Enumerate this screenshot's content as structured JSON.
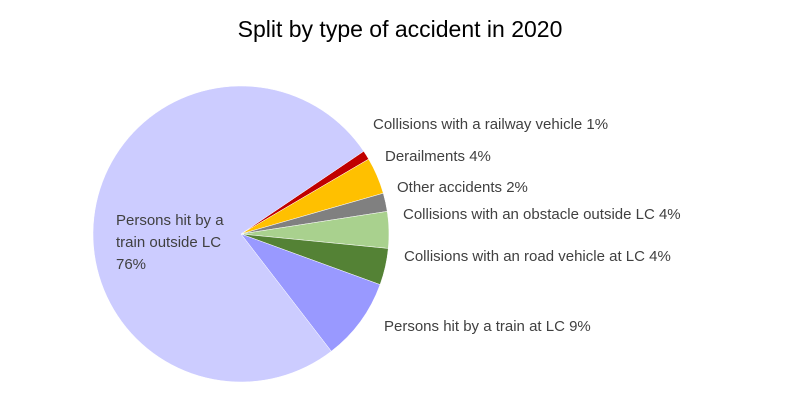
{
  "chart_data": {
    "type": "pie",
    "title": "Split by type of accident in 2020",
    "slices": [
      {
        "label": "Collisions with a railway vehicle",
        "value": 1,
        "pct_label": "1%",
        "color": "#C00000"
      },
      {
        "label": "Derailments",
        "value": 4,
        "pct_label": "4%",
        "color": "#FFC000"
      },
      {
        "label": "Other accidents",
        "value": 2,
        "pct_label": "2%",
        "color": "#808080"
      },
      {
        "label": "Collisions with an obstacle outside LC",
        "value": 4,
        "pct_label": "4%",
        "color": "#A9D18E"
      },
      {
        "label": "Collisions with an road vehicle at LC",
        "value": 4,
        "pct_label": "4%",
        "color": "#548235"
      },
      {
        "label": "Persons hit by a train at LC",
        "value": 9,
        "pct_label": "9%",
        "color": "#9999FF"
      },
      {
        "label": "Persons hit by a train outside LC",
        "value": 76,
        "pct_label": "76%",
        "color": "#CCCCFF"
      }
    ],
    "legend": "none"
  }
}
